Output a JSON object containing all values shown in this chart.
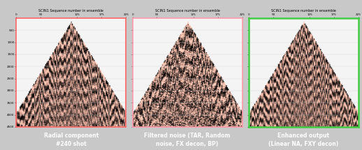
{
  "panels": [
    {
      "label": "Radial component\n#240 shot",
      "border_color": "#ff6666",
      "border_lw": 1.2
    },
    {
      "label": "Filtered noise (TAR, Random\nnoise, FX decon, BP)",
      "border_color": "#ff99aa",
      "border_lw": 1.2
    },
    {
      "label": "Enhanced output\n(Linear NA, FXY decon)",
      "border_color": "#44cc44",
      "border_lw": 1.8
    }
  ],
  "label_bg_color": "#3a5db5",
  "label_text_color": "#ffffff",
  "label_fontsize": 5.5,
  "axis_label": "SCIN1 Sequence number in ensemble",
  "fig_bg_color": "#c8c8c8",
  "panel_bg_color": "#f5f5f5"
}
